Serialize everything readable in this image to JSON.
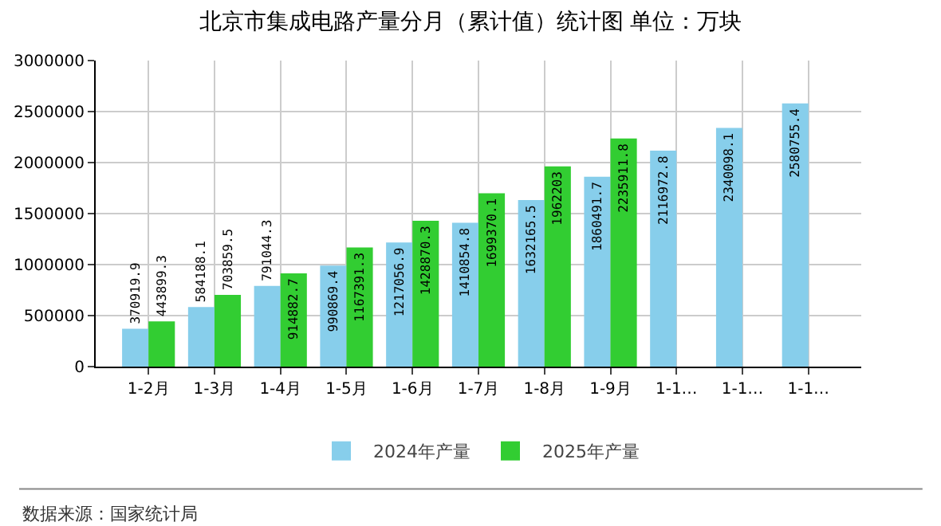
{
  "chart_data": {
    "type": "bar",
    "title": "北京市集成电路产量分月（累计值）统计图 单位：万块",
    "categories": [
      "1-2月",
      "1-3月",
      "1-4月",
      "1-5月",
      "1-6月",
      "1-7月",
      "1-8月",
      "1-9月",
      "1-1…",
      "1-1…",
      "1-1…"
    ],
    "series": [
      {
        "name": "2024年产量",
        "color": "#87ceeb",
        "values": [
          370919.9,
          584188.1,
          791044.3,
          990869.4,
          1217056.9,
          1410854.8,
          1632165.5,
          1860491.7,
          2116972.8,
          2340098.1,
          2580755.4
        ]
      },
      {
        "name": "2025年产量",
        "color": "#32cd32",
        "values": [
          443899.3,
          703859.5,
          914882.7,
          1167391.3,
          1428870.3,
          1699370.1,
          1962203,
          2235911.8,
          null,
          null,
          null
        ]
      }
    ],
    "ylim": [
      0,
      3000000
    ],
    "yticks": [
      0,
      500000,
      1000000,
      1500000,
      2000000,
      2500000,
      3000000
    ],
    "grid": true,
    "legend": "bottom",
    "data_labels": true,
    "annotations": [
      "数据来源：国家统计局"
    ]
  }
}
